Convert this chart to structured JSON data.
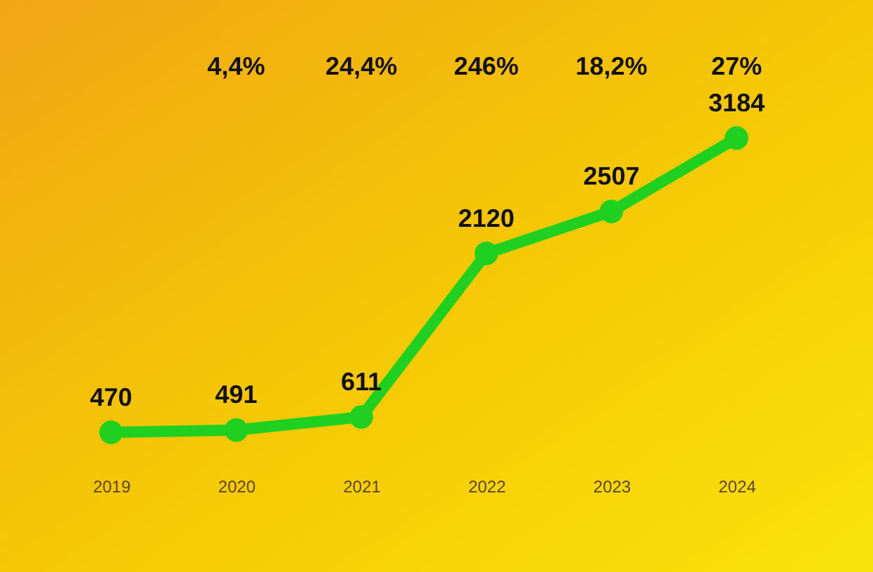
{
  "chart_data": {
    "type": "line",
    "categories": [
      "2019",
      "2020",
      "2021",
      "2022",
      "2023",
      "2024"
    ],
    "series": [
      {
        "color": "#20d020",
        "values": [
          470,
          491,
          611,
          2120,
          2507,
          3184
        ]
      }
    ],
    "tick_labels": "x",
    "marker": "circle",
    "line_style": "solid",
    "data_labels": true,
    "annotations": [
      "4,4%",
      "24,4%",
      "246%",
      "18,2%",
      "27%"
    ]
  }
}
